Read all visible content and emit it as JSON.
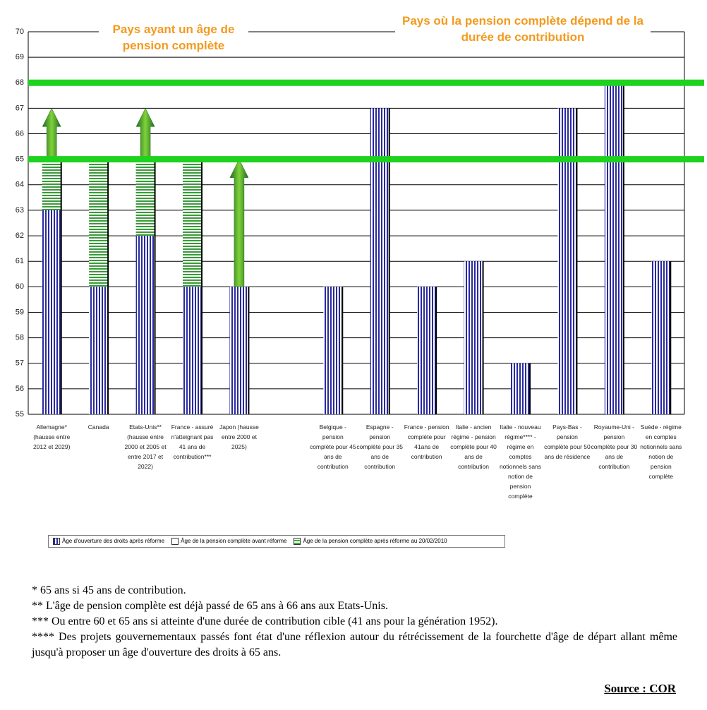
{
  "chart_data": {
    "type": "bar",
    "annotations": [
      "Pays ayant un âge de pension complète",
      "Pays où la pension complète dépend de la durée de contribution"
    ],
    "categories": [
      "Allemagne* (hausse entre 2012 et 2029)",
      "Canada",
      "Etats-Unis** (hausse entre 2000 et 2005 et entre 2017 et 2022)",
      "France - assuré n'atteignant pas 41 ans de contribution***",
      "Japon (hausse entre 2000 et 2025)",
      null,
      "Belgique - pension complète pour 45 ans de contribution",
      "Espagne - pension complète pour 35 ans de contribution",
      "France - pension complète pour 41ans de contribution",
      "Italie - ancien régime - pension complète pour 40 ans de contribution",
      "Italie - nouveau régime**** - régime en comptes notionnels sans notion de pension complète",
      "Pays-Bas - pension complète pour 50 ans de résidence",
      "Royaume-Uni - pension complète pour 30 ans de contribution",
      "Suède - régime en comptes notionnels sans notion de pension complète"
    ],
    "series": [
      {
        "name": "Âge d'ouverture des droits après réforme",
        "color": "#2a2aa0",
        "values": [
          63,
          60,
          62,
          60,
          60,
          null,
          60,
          67,
          60,
          61,
          57,
          67,
          68,
          61
        ]
      },
      {
        "name": "Âge de la pension complète avant réforme",
        "color": "#3a9a3a",
        "values": [
          65,
          65,
          65,
          65,
          null,
          null,
          null,
          null,
          null,
          null,
          null,
          null,
          null,
          null
        ]
      },
      {
        "name": "Âge de la pension complète après réforme au 20/02/2010",
        "color": "#3cb43c",
        "values": [
          67,
          null,
          67,
          null,
          65,
          null,
          null,
          null,
          null,
          null,
          null,
          null,
          null,
          null
        ]
      }
    ],
    "reference_lines": [
      65,
      68
    ],
    "reference_color": "#1ed21e",
    "ylim": [
      55,
      70
    ],
    "yticks": [
      55,
      56,
      57,
      58,
      59,
      60,
      61,
      62,
      63,
      64,
      65,
      66,
      67,
      68,
      69,
      70
    ],
    "grid": true
  },
  "notes": [
    "* 65 ans si 45 ans de contribution.",
    "** L'âge de pension complète est déjà passé de 65 ans à 66 ans aux Etats-Unis.",
    "*** Ou entre 60 et 65 ans si atteinte d'une durée de contribution cible (41 ans pour la génération 1952).",
    "**** Des projets gouvernementaux passés font état d'une réflexion autour du rétrécissement de la fourchette d'âge de départ allant même jusqu'à proposer  un âge d'ouverture des droits à 65 ans."
  ],
  "source": "Source : COR"
}
